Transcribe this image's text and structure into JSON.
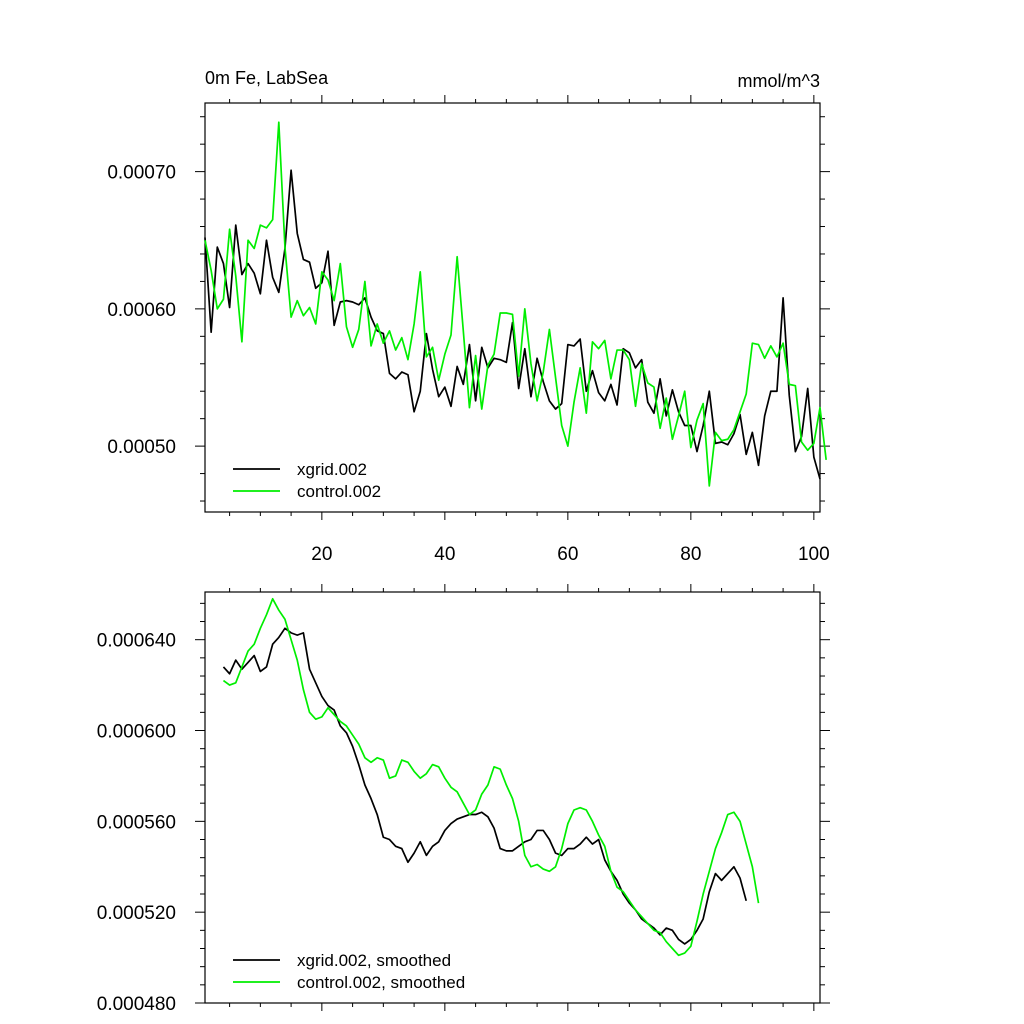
{
  "chart_data": [
    {
      "type": "line",
      "title": "0m Fe, LabSea",
      "units": "mmol/m^3",
      "xlim": [
        1,
        101
      ],
      "ylim": [
        0.000452,
        0.00075
      ],
      "xticks": [
        20,
        40,
        60,
        80,
        100
      ],
      "xtick_labels": [
        "20",
        "40",
        "60",
        "80",
        "100"
      ],
      "yticks": [
        0.0005,
        0.0006,
        0.0007
      ],
      "ytick_labels": [
        "0.00050",
        "0.00060",
        "0.00070"
      ],
      "grid": false,
      "legend": "bottom-left",
      "series": [
        {
          "name": "xgrid.002",
          "color": "#000000",
          "x_start": 1,
          "values": [
            0.000652,
            0.000583,
            0.000645,
            0.000633,
            0.000601,
            0.000661,
            0.000625,
            0.000633,
            0.000626,
            0.000611,
            0.00065,
            0.000623,
            0.000612,
            0.000644,
            0.000701,
            0.000655,
            0.000636,
            0.000634,
            0.000615,
            0.000619,
            0.000642,
            0.000588,
            0.000605,
            0.000606,
            0.000605,
            0.000603,
            0.000608,
            0.000594,
            0.000584,
            0.000582,
            0.000553,
            0.000549,
            0.000554,
            0.000552,
            0.000525,
            0.00054,
            0.000582,
            0.000556,
            0.000536,
            0.000543,
            0.000529,
            0.000558,
            0.000545,
            0.000574,
            0.000533,
            0.000572,
            0.000557,
            0.000564,
            0.000563,
            0.000561,
            0.00059,
            0.000542,
            0.000571,
            0.000536,
            0.000564,
            0.000547,
            0.000533,
            0.000527,
            0.000531,
            0.000574,
            0.000573,
            0.000578,
            0.00054,
            0.000555,
            0.000539,
            0.000533,
            0.000545,
            0.00053,
            0.000571,
            0.000568,
            0.000557,
            0.000563,
            0.000532,
            0.000524,
            0.000549,
            0.000522,
            0.000541,
            0.000525,
            0.000515,
            0.000515,
            0.000496,
            0.000515,
            0.00054,
            0.000502,
            0.000503,
            0.000501,
            0.000509,
            0.000523,
            0.000494,
            0.00051,
            0.000486,
            0.000522,
            0.00054,
            0.00054,
            0.000608,
            0.000537,
            0.000496,
            0.000507,
            0.000542,
            0.000492,
            0.000476
          ]
        },
        {
          "name": "control.002",
          "color": "#00ee00",
          "x_start": 1,
          "values": [
            0.00065,
            0.000628,
            0.0006,
            0.000607,
            0.000658,
            0.000624,
            0.000576,
            0.00065,
            0.000644,
            0.000661,
            0.000659,
            0.000665,
            0.000736,
            0.000645,
            0.000594,
            0.000606,
            0.000595,
            0.000601,
            0.000589,
            0.000627,
            0.000621,
            0.000606,
            0.000633,
            0.000587,
            0.000572,
            0.000585,
            0.00062,
            0.000573,
            0.000589,
            0.000575,
            0.000584,
            0.00057,
            0.000579,
            0.000563,
            0.000589,
            0.000627,
            0.000565,
            0.000572,
            0.000548,
            0.000567,
            0.000581,
            0.000638,
            0.000584,
            0.000528,
            0.000566,
            0.000527,
            0.000559,
            0.000567,
            0.000597,
            0.000597,
            0.000596,
            0.000551,
            0.0006,
            0.00056,
            0.000533,
            0.000554,
            0.000585,
            0.00055,
            0.000515,
            0.0005,
            0.000532,
            0.000557,
            0.000524,
            0.000576,
            0.000571,
            0.000577,
            0.000549,
            0.00057,
            0.00057,
            0.000563,
            0.000529,
            0.00056,
            0.000546,
            0.000543,
            0.000513,
            0.000535,
            0.000505,
            0.000522,
            0.00054,
            0.000499,
            0.000519,
            0.000531,
            0.000471,
            0.00051,
            0.000504,
            0.000505,
            0.000512,
            0.000525,
            0.000538,
            0.000575,
            0.000574,
            0.000564,
            0.000573,
            0.000565,
            0.000575,
            0.000545,
            0.000544,
            0.000503,
            0.000497,
            0.000502,
            0.000528,
            0.00049
          ]
        }
      ]
    },
    {
      "type": "line",
      "title": "",
      "xlim": [
        1,
        101
      ],
      "ylim": [
        0.00048,
        0.000661
      ],
      "xticks": [
        20,
        40,
        60,
        80,
        100
      ],
      "xtick_labels": [],
      "yticks": [
        0.00048,
        0.00052,
        0.00056,
        0.0006,
        0.00064
      ],
      "ytick_labels": [
        "0.000480",
        "0.000520",
        "0.000560",
        "0.000600",
        "0.000640"
      ],
      "grid": false,
      "legend": "bottom-left",
      "series": [
        {
          "name": "xgrid.002, smoothed",
          "color": "#000000",
          "x_start": 4,
          "values": [
            0.000628,
            0.000625,
            0.000631,
            0.000627,
            0.00063,
            0.000633,
            0.000626,
            0.000628,
            0.000638,
            0.000641,
            0.000645,
            0.000643,
            0.000642,
            0.000643,
            0.000627,
            0.000621,
            0.000615,
            0.000611,
            0.000609,
            0.000602,
            0.000599,
            0.000593,
            0.000585,
            0.000576,
            0.00057,
            0.000563,
            0.000553,
            0.000552,
            0.000549,
            0.000548,
            0.000542,
            0.000546,
            0.000551,
            0.000545,
            0.000549,
            0.000551,
            0.000556,
            0.000559,
            0.000561,
            0.000562,
            0.000563,
            0.000563,
            0.000564,
            0.000562,
            0.000557,
            0.000548,
            0.000547,
            0.000547,
            0.000549,
            0.000551,
            0.000552,
            0.000556,
            0.000556,
            0.000552,
            0.000546,
            0.000545,
            0.000548,
            0.000548,
            0.00055,
            0.000553,
            0.00055,
            0.000552,
            0.000543,
            0.000538,
            0.000534,
            0.000528,
            0.000524,
            0.000521,
            0.000517,
            0.000515,
            0.000513,
            0.00051,
            0.000513,
            0.000512,
            0.000508,
            0.000506,
            0.000508,
            0.000512,
            0.000517,
            0.000529,
            0.000537,
            0.000534,
            0.000537,
            0.00054,
            0.000535,
            0.000525
          ]
        },
        {
          "name": "control.002, smoothed",
          "color": "#00ee00",
          "x_start": 4,
          "values": [
            0.000622,
            0.00062,
            0.000621,
            0.000628,
            0.000635,
            0.000638,
            0.000645,
            0.000651,
            0.000658,
            0.000653,
            0.000649,
            0.00064,
            0.000631,
            0.000618,
            0.000608,
            0.000605,
            0.000606,
            0.00061,
            0.000607,
            0.000604,
            0.000602,
            0.000598,
            0.000594,
            0.000588,
            0.000586,
            0.000588,
            0.000587,
            0.000579,
            0.00058,
            0.000587,
            0.000586,
            0.000582,
            0.000579,
            0.000581,
            0.000585,
            0.000584,
            0.000579,
            0.000575,
            0.000573,
            0.000568,
            0.000563,
            0.000565,
            0.000572,
            0.000576,
            0.000584,
            0.000583,
            0.000576,
            0.00057,
            0.00056,
            0.000545,
            0.00054,
            0.000541,
            0.000539,
            0.000538,
            0.00054,
            0.000548,
            0.000559,
            0.000565,
            0.000566,
            0.000565,
            0.00056,
            0.000554,
            0.000549,
            0.000538,
            0.000531,
            0.000529,
            0.000525,
            0.000521,
            0.000518,
            0.000515,
            0.000512,
            0.000511,
            0.000507,
            0.000504,
            0.000501,
            0.000502,
            0.000505,
            0.000516,
            0.000528,
            0.000538,
            0.000548,
            0.000555,
            0.000563,
            0.000564,
            0.00056,
            0.00055,
            0.00054,
            0.000524
          ]
        }
      ]
    }
  ]
}
